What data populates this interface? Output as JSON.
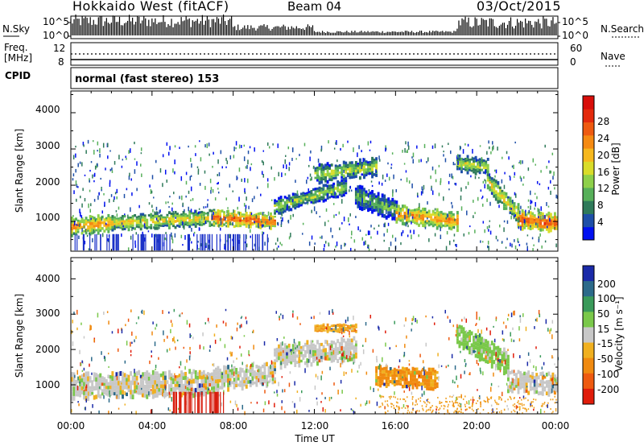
{
  "header": {
    "station": "Hokkaido West (fitACF)",
    "beam": "Beam 04",
    "date": "03/Oct/2015"
  },
  "noise_panel": {
    "left_label": "N.Sky",
    "right_label": "N.Search",
    "tick_high": "10^5",
    "tick_low": "10^0"
  },
  "freq_panel": {
    "left_label_line1": "Freq.",
    "left_label_line2": "[MHz]",
    "right_label": "Nave",
    "left_ticks": [
      "12",
      "8"
    ],
    "right_ticks": [
      "60",
      "0"
    ]
  },
  "cpid_panel": {
    "label": "CPID",
    "program": "normal (fast stereo) 153"
  },
  "power_panel": {
    "ylabel": "Slant Range [km]",
    "yticks": [
      "1000",
      "2000",
      "3000",
      "4000"
    ],
    "colorbar_label": "Power [dB]",
    "colorbar_ticks": [
      "4",
      "8",
      "12",
      "16",
      "20",
      "24",
      "28"
    ],
    "colors": [
      "#0010f0",
      "#1e4fa8",
      "#2f7a5a",
      "#57b05a",
      "#8ed04a",
      "#d9dc2a",
      "#f6b81e",
      "#f58a12",
      "#ee5a10",
      "#e32a0c",
      "#d80e0a"
    ]
  },
  "velocity_panel": {
    "ylabel": "Slant Range [km]",
    "yticks": [
      "1000",
      "2000",
      "3000",
      "4000"
    ],
    "colorbar_label": "Velocity [m s⁻¹]",
    "colorbar_ticks": [
      "200",
      "100",
      "50",
      "15",
      "-15",
      "-50",
      "-100",
      "-200"
    ],
    "colors": [
      "#1a2aa8",
      "#2c6a8a",
      "#3a9a5a",
      "#7ac84a",
      "#c8c8c8",
      "#f0b020",
      "#f08a10",
      "#ee5a10",
      "#e01c0a"
    ]
  },
  "xaxis": {
    "label": "Time UT",
    "ticks": [
      "00:00",
      "04:00",
      "08:00",
      "12:00",
      "16:00",
      "20:00",
      "00:00"
    ]
  },
  "chart_data": [
    {
      "type": "heatmap",
      "title": "Power",
      "xlabel": "Time UT",
      "ylabel": "Slant Range [km]",
      "xlim": [
        0,
        24
      ],
      "ylim": [
        180,
        4600
      ],
      "clim": [
        0,
        30
      ],
      "colorbar_label": "Power [dB]",
      "bands": [
        {
          "t": [
            0,
            2
          ],
          "center": [
            850,
            950
          ],
          "width": 480,
          "value": 22
        },
        {
          "t": [
            2,
            7
          ],
          "center": [
            950,
            1100
          ],
          "width": 420,
          "value": 18
        },
        {
          "t": [
            7,
            10
          ],
          "center": [
            1100,
            1000
          ],
          "width": 420,
          "value": 25
        },
        {
          "t": [
            10,
            13.5
          ],
          "center": [
            1400,
            1950
          ],
          "width": 440,
          "value": 14
        },
        {
          "t": [
            12,
            15
          ],
          "center": [
            2300,
            2500
          ],
          "width": 500,
          "value": 15
        },
        {
          "t": [
            14,
            16
          ],
          "center": [
            1700,
            1300
          ],
          "width": 600,
          "value": 12
        },
        {
          "t": [
            16,
            19
          ],
          "center": [
            1200,
            1000
          ],
          "width": 500,
          "value": 22
        },
        {
          "t": [
            19,
            20.5
          ],
          "center": [
            2600,
            2500
          ],
          "width": 450,
          "value": 16
        },
        {
          "t": [
            20.5,
            22
          ],
          "center": [
            2100,
            1200
          ],
          "width": 520,
          "value": 18
        },
        {
          "t": [
            22,
            24
          ],
          "center": [
            1050,
            950
          ],
          "width": 500,
          "value": 25
        }
      ]
    },
    {
      "type": "heatmap",
      "title": "Velocity",
      "xlabel": "Time UT",
      "ylabel": "Slant Range [km]",
      "xlim": [
        0,
        24
      ],
      "ylim": [
        180,
        4600
      ],
      "clim": [
        -200,
        200
      ],
      "colorbar_label": "Velocity [m s⁻¹]",
      "bands": [
        {
          "t": [
            0,
            7
          ],
          "center": [
            950,
            1050
          ],
          "width": 700,
          "value": 0
        },
        {
          "t": [
            7,
            10
          ],
          "center": [
            1150,
            1300
          ],
          "width": 650,
          "value": 0
        },
        {
          "t": [
            10,
            14
          ],
          "center": [
            1800,
            2000
          ],
          "width": 650,
          "value": 0
        },
        {
          "t": [
            12,
            14
          ],
          "center": [
            2600,
            2600
          ],
          "width": 250,
          "value": -40
        },
        {
          "t": [
            15,
            18
          ],
          "center": [
            1250,
            1150
          ],
          "width": 550,
          "value": -60
        },
        {
          "t": [
            19,
            21.5
          ],
          "center": [
            2400,
            1600
          ],
          "width": 700,
          "value": 30
        },
        {
          "t": [
            21.5,
            24
          ],
          "center": [
            1100,
            1000
          ],
          "width": 600,
          "value": 0
        }
      ]
    }
  ]
}
